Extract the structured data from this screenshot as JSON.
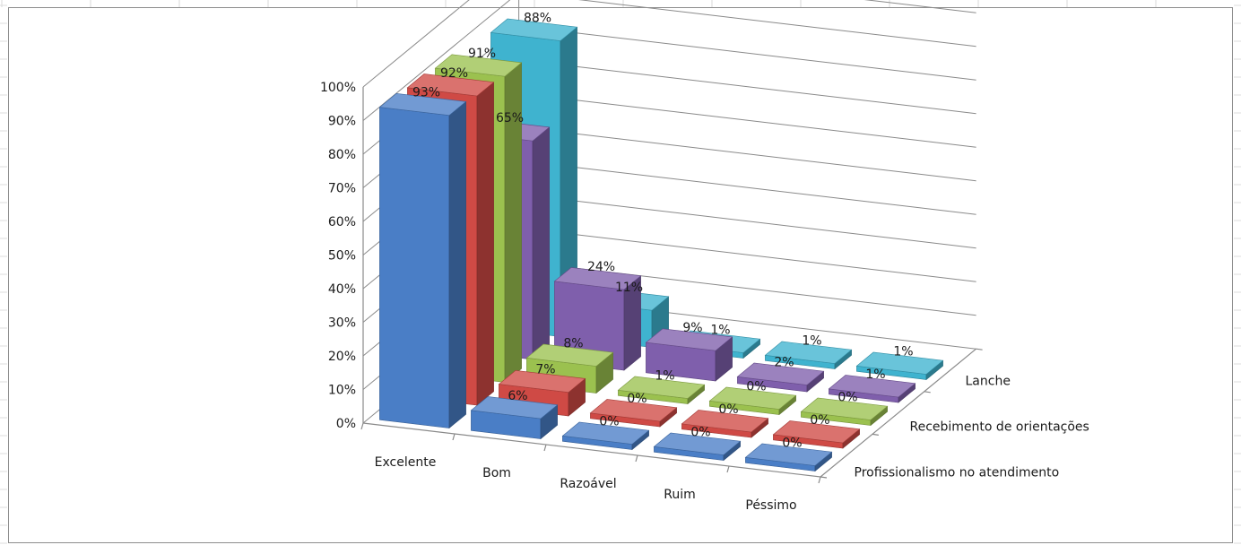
{
  "chart_data": {
    "type": "bar",
    "variant": "3d-column",
    "categories": [
      "Excelente",
      "Bom",
      "Razoável",
      "Ruim",
      "Péssimo"
    ],
    "series": [
      {
        "name": "Profissionalismo no atendimento",
        "values": [
          93,
          6,
          0,
          0,
          0
        ],
        "labels": [
          "93%",
          "6%",
          "0%",
          "0%",
          "0%"
        ],
        "color": "#4a7ec6"
      },
      {
        "name": "Recebimento de orientações",
        "values": [
          92,
          7,
          0,
          0,
          0
        ],
        "labels": [
          "92%",
          "7%",
          "0%",
          "0%",
          "0%"
        ],
        "color": "#cf4a45"
      },
      {
        "name": "",
        "values": [
          91,
          8,
          1,
          0,
          0
        ],
        "labels": [
          "91%",
          "8%",
          "1%",
          "0%",
          "0%"
        ],
        "color": "#9bc14f"
      },
      {
        "name": "",
        "values": [
          65,
          24,
          9,
          2,
          1
        ],
        "labels": [
          "65%",
          "24%",
          "9%",
          "2%",
          "1%"
        ],
        "color": "#7f5fac"
      },
      {
        "name": "Lanche",
        "values": [
          88,
          11,
          1,
          1,
          1
        ],
        "labels": [
          "88%",
          "11%",
          "1%",
          "1%",
          "1%"
        ],
        "color": "#3fb3cf"
      }
    ],
    "depth_axis_labels": [
      "Profissionalismo no atendimento",
      "Recebimento de orientações",
      "Lanche"
    ],
    "y_tick_labels": [
      "0%",
      "10%",
      "20%",
      "30%",
      "40%",
      "50%",
      "60%",
      "70%",
      "80%",
      "90%",
      "100%"
    ],
    "ylim": [
      0,
      100
    ],
    "grid": true
  }
}
